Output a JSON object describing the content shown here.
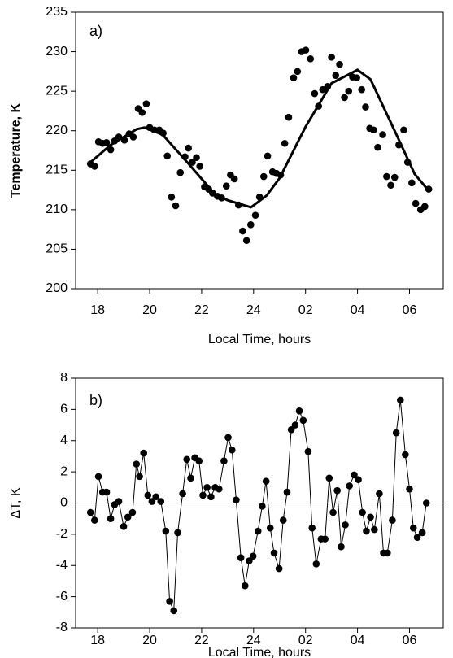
{
  "chart_data": [
    {
      "type": "scatter",
      "annotation": "a)",
      "ylabel": "Temperature, K",
      "xlabel": "Local Time, hours",
      "color": "#000000",
      "xlim": [
        17.15,
        31.3
      ],
      "ylim": [
        200,
        235
      ],
      "xticks": [
        18,
        20,
        22,
        24,
        {
          "value": 26,
          "label": "02"
        },
        {
          "value": 28,
          "label": "04"
        },
        {
          "value": 30,
          "label": "06"
        }
      ],
      "yticks": [
        200,
        205,
        210,
        215,
        220,
        225,
        230,
        235
      ],
      "x": [
        17.72,
        17.88,
        18.03,
        18.19,
        18.34,
        18.5,
        18.65,
        18.81,
        19.03,
        19.21,
        19.37,
        19.56,
        19.71,
        19.87,
        20.0,
        20.18,
        20.37,
        20.52,
        20.68,
        20.84,
        21.0,
        21.18,
        21.36,
        21.49,
        21.64,
        21.8,
        21.93,
        22.11,
        22.27,
        22.42,
        22.61,
        22.77,
        22.95,
        23.11,
        23.26,
        23.42,
        23.58,
        23.73,
        23.89,
        24.07,
        24.23,
        24.39,
        24.54,
        24.73,
        24.88,
        25.04,
        25.2,
        25.35,
        25.54,
        25.69,
        25.85,
        26.01,
        26.19,
        26.35,
        26.5,
        26.66,
        26.85,
        27.0,
        27.16,
        27.31,
        27.5,
        27.66,
        27.81,
        27.97,
        28.16,
        28.31,
        28.47,
        28.62,
        28.78,
        28.97,
        29.12,
        29.28,
        29.43,
        29.59,
        29.78,
        29.93,
        30.09,
        30.24,
        30.43,
        30.59,
        30.74
      ],
      "values": [
        215.8,
        215.5,
        218.6,
        218.4,
        218.5,
        217.6,
        218.7,
        219.2,
        218.8,
        219.6,
        219.2,
        222.8,
        222.3,
        223.4,
        220.4,
        220.1,
        220.1,
        219.7,
        216.8,
        211.6,
        210.5,
        214.7,
        216.7,
        217.8,
        216.0,
        216.6,
        215.5,
        212.9,
        212.6,
        212.1,
        211.7,
        211.5,
        213.0,
        214.4,
        213.9,
        210.6,
        207.3,
        206.1,
        208.1,
        209.3,
        211.6,
        214.2,
        216.8,
        214.8,
        214.6,
        214.4,
        218.4,
        221.7,
        226.7,
        227.5,
        230.0,
        230.2,
        229.1,
        224.7,
        223.1,
        225.2,
        225.6,
        229.3,
        227.0,
        228.4,
        224.2,
        225.0,
        226.8,
        226.7,
        225.2,
        223.0,
        220.3,
        220.1,
        217.9,
        219.5,
        214.2,
        213.1,
        214.1,
        218.2,
        220.1,
        216.0,
        213.4,
        210.8,
        210.0,
        210.4,
        212.6
      ],
      "fit_x": [
        17.72,
        18.5,
        19.5,
        19.8,
        20.5,
        21.5,
        22.5,
        23.0,
        23.9,
        24.5,
        25.0,
        26.0,
        27.0,
        28.0,
        28.5,
        29.5,
        30.2,
        30.74
      ],
      "fit_values": [
        216.0,
        218.2,
        220.2,
        220.4,
        219.5,
        215.8,
        212.0,
        211.2,
        210.3,
        211.8,
        214.0,
        220.5,
        226.0,
        227.7,
        226.5,
        219.5,
        214.5,
        212.4
      ]
    },
    {
      "type": "line",
      "annotation": "b)",
      "ylabel": "ΔT, K",
      "xlabel": "Local Time, hours",
      "color": "#000000",
      "hline": 0,
      "xlim": [
        17.15,
        31.3
      ],
      "ylim": [
        -8,
        8
      ],
      "xticks": [
        18,
        20,
        22,
        24,
        {
          "value": 26,
          "label": "02"
        },
        {
          "value": 28,
          "label": "04"
        },
        {
          "value": 30,
          "label": "06"
        }
      ],
      "yticks": [
        -8,
        -6,
        -4,
        -2,
        0,
        2,
        4,
        6,
        8
      ],
      "x": [
        17.72,
        17.88,
        18.03,
        18.19,
        18.34,
        18.5,
        18.65,
        18.81,
        19.0,
        19.16,
        19.34,
        19.49,
        19.61,
        19.77,
        19.93,
        20.09,
        20.24,
        20.43,
        20.62,
        20.77,
        20.93,
        21.08,
        21.27,
        21.43,
        21.58,
        21.74,
        21.9,
        22.05,
        22.21,
        22.36,
        22.52,
        22.67,
        22.86,
        23.02,
        23.17,
        23.33,
        23.51,
        23.67,
        23.83,
        23.98,
        24.17,
        24.33,
        24.48,
        24.64,
        24.79,
        24.98,
        25.14,
        25.29,
        25.45,
        25.6,
        25.76,
        25.91,
        26.1,
        26.25,
        26.41,
        26.6,
        26.75,
        26.91,
        27.06,
        27.22,
        27.37,
        27.53,
        27.69,
        27.87,
        28.03,
        28.19,
        28.34,
        28.5,
        28.65,
        28.84,
        29.0,
        29.15,
        29.34,
        29.49,
        29.65,
        29.84,
        30.0,
        30.15,
        30.3,
        30.49,
        30.65
      ],
      "values": [
        -0.6,
        -1.1,
        1.7,
        0.7,
        0.7,
        -1.0,
        -0.1,
        0.1,
        -1.5,
        -0.9,
        -0.6,
        2.5,
        1.7,
        3.2,
        0.5,
        0.1,
        0.4,
        0.1,
        -1.8,
        -6.3,
        -6.9,
        -1.9,
        0.6,
        2.8,
        1.6,
        2.9,
        2.7,
        0.5,
        1.0,
        0.4,
        1.0,
        0.9,
        2.7,
        4.2,
        3.4,
        0.2,
        -3.5,
        -5.3,
        -3.7,
        -3.4,
        -1.8,
        -0.2,
        1.4,
        -1.6,
        -3.2,
        -4.2,
        -1.1,
        0.7,
        4.7,
        5.0,
        5.9,
        5.3,
        3.3,
        -1.6,
        -3.9,
        -2.3,
        -2.3,
        1.6,
        -0.6,
        0.8,
        -2.8,
        -1.4,
        1.1,
        1.8,
        1.5,
        -0.6,
        -1.8,
        -0.9,
        -1.7,
        0.6,
        -3.2,
        -3.2,
        -1.1,
        4.5,
        6.6,
        3.1,
        0.9,
        -1.6,
        -2.2,
        -1.9,
        0.0
      ]
    }
  ]
}
